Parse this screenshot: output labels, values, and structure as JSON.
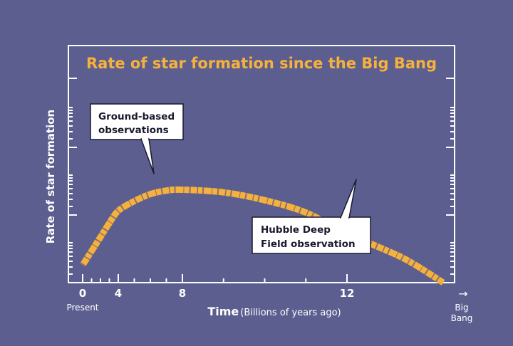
{
  "chart_data": {
    "type": "line",
    "title": "Rate of star formation since the Big Bang",
    "ylabel": "Rate of star formation",
    "xlabel_main": "Time",
    "xlabel_units": "(Billions of years ago)",
    "x_ticks": [
      "0",
      "4",
      "8",
      "12"
    ],
    "x_tick_values": [
      0,
      4,
      8,
      12
    ],
    "x_sublabel_left": "Present",
    "x_sublabel_right": [
      "Big",
      "Bang"
    ],
    "right_arrow": "→",
    "annotations": [
      {
        "lines": [
          "Ground-based",
          "observations"
        ]
      },
      {
        "lines": [
          "Hubble Deep",
          "Field observation"
        ]
      }
    ],
    "series": [
      {
        "x": [
          0,
          1,
          2,
          3,
          4,
          5,
          6,
          7,
          8,
          9,
          10,
          11,
          12,
          12.7,
          13.2
        ],
        "y": [
          0.28,
          0.36,
          0.44,
          0.52,
          0.59,
          0.645,
          0.685,
          0.705,
          0.71,
          0.695,
          0.65,
          0.58,
          0.46,
          0.32,
          0.18
        ]
      }
    ],
    "xlim": [
      0,
      13.2
    ],
    "ylim": [
      0.18,
      0.98
    ],
    "y_scale": "no numeric ticks shown",
    "colors": {
      "background": "#5c5e8f",
      "accent": "#f6b13c",
      "text": "#ffffff",
      "callout_border": "#1a1a2e"
    }
  }
}
